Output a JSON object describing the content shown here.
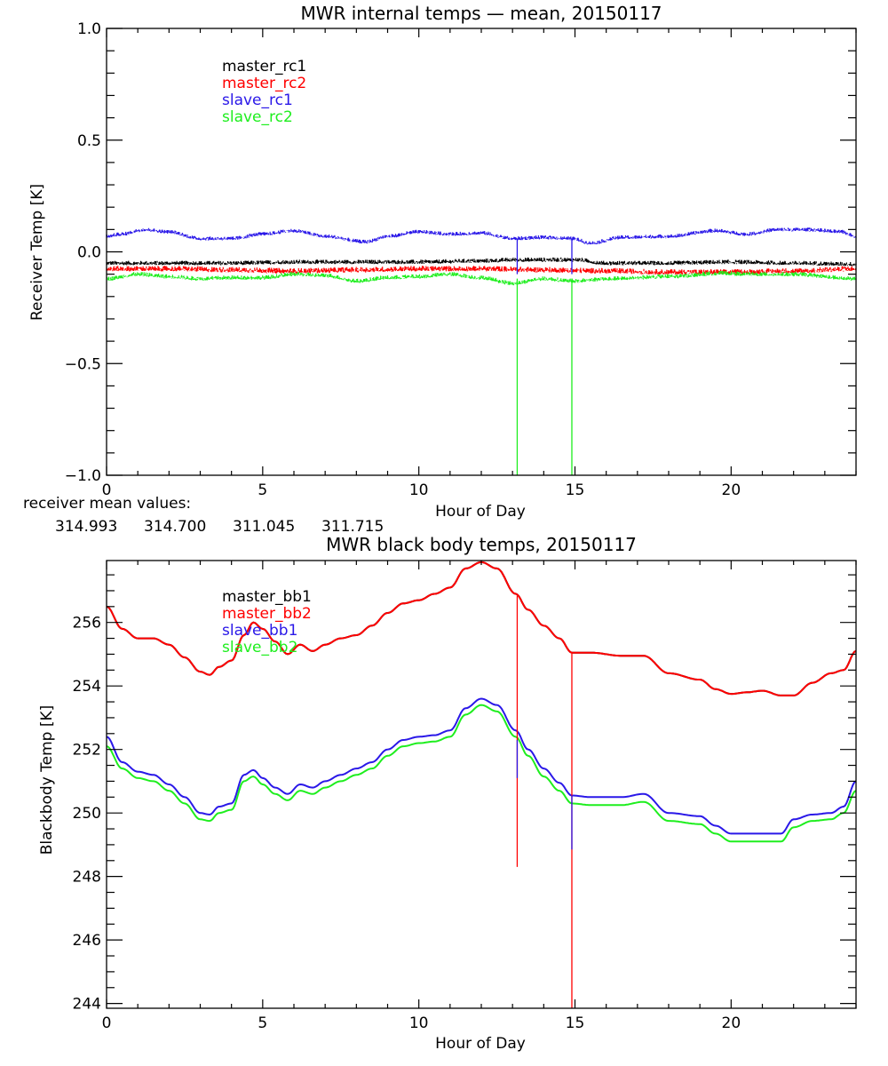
{
  "colors": {
    "black": "#000000",
    "red": "#ff0000",
    "blue": "#2a18e8",
    "green": "#1eee1e",
    "axis": "#000000"
  },
  "receiver_means": {
    "label": "receiver mean values:",
    "values": [
      {
        "text": "314.993",
        "color": "black"
      },
      {
        "text": "314.700",
        "color": "red"
      },
      {
        "text": "311.045",
        "color": "blue"
      },
      {
        "text": "311.715",
        "color": "green"
      }
    ]
  },
  "chart_data": [
    {
      "type": "line",
      "title": "MWR internal temps — mean, 20150117",
      "xlabel": "Hour of Day",
      "ylabel": "Receiver Temp [K]",
      "xlim": [
        0,
        24
      ],
      "ylim": [
        -1.0,
        1.0
      ],
      "xticks": [
        0,
        5,
        10,
        15,
        20
      ],
      "xtick_labels": [
        "0",
        "5",
        "10",
        "15",
        "20"
      ],
      "xminor_step": 1,
      "yticks": [
        -1.0,
        -0.5,
        0.0,
        0.5,
        1.0
      ],
      "ytick_labels": [
        "−1.0",
        "−0.5",
        "0.0",
        "0.5",
        "1.0"
      ],
      "yminor_step": 0.1,
      "grid": false,
      "legend_position": "top-left",
      "noisy": true,
      "series": [
        {
          "name": "master_rc1",
          "color": "black",
          "x": [
            0,
            2,
            4,
            6,
            8,
            10,
            12,
            13.2,
            14,
            15,
            16,
            18,
            20,
            22,
            24
          ],
          "y": [
            -0.05,
            -0.05,
            -0.05,
            -0.045,
            -0.045,
            -0.045,
            -0.04,
            -0.035,
            -0.035,
            -0.035,
            -0.05,
            -0.05,
            -0.045,
            -0.05,
            -0.055
          ],
          "band": 0.02
        },
        {
          "name": "master_rc2",
          "color": "red",
          "x": [
            0,
            2,
            4,
            6,
            8,
            10,
            12,
            14,
            16,
            18,
            20,
            22,
            24
          ],
          "y": [
            -0.075,
            -0.075,
            -0.08,
            -0.085,
            -0.08,
            -0.075,
            -0.075,
            -0.08,
            -0.085,
            -0.09,
            -0.09,
            -0.085,
            -0.075
          ],
          "band": 0.025
        },
        {
          "name": "slave_rc1",
          "color": "blue",
          "x": [
            0,
            0.5,
            1.2,
            2,
            3,
            4,
            5,
            6,
            7,
            8.3,
            9,
            10,
            11,
            12,
            13,
            14,
            14.9,
            15.5,
            16.5,
            18,
            19.5,
            20.5,
            21.5,
            22.5,
            23.5,
            24
          ],
          "y": [
            0.07,
            0.08,
            0.1,
            0.09,
            0.06,
            0.06,
            0.08,
            0.095,
            0.07,
            0.045,
            0.07,
            0.09,
            0.08,
            0.085,
            0.06,
            0.065,
            0.06,
            0.04,
            0.065,
            0.07,
            0.095,
            0.08,
            0.1,
            0.1,
            0.09,
            0.07
          ],
          "band": 0.018
        },
        {
          "name": "slave_rc2",
          "color": "green",
          "x": [
            0,
            1,
            2,
            3,
            4,
            5,
            6,
            7,
            8,
            9,
            10,
            11,
            12,
            13,
            14,
            15,
            16,
            18,
            19.8,
            20.5,
            22,
            24
          ],
          "y": [
            -0.12,
            -0.1,
            -0.11,
            -0.12,
            -0.115,
            -0.115,
            -0.1,
            -0.105,
            -0.13,
            -0.115,
            -0.11,
            -0.1,
            -0.115,
            -0.14,
            -0.12,
            -0.13,
            -0.12,
            -0.11,
            -0.095,
            -0.1,
            -0.1,
            -0.12
          ],
          "band": 0.02
        }
      ],
      "spikes": [
        {
          "x": 13.15,
          "from": -0.12,
          "to": -1.0,
          "color": "green"
        },
        {
          "x": 14.9,
          "from": -0.12,
          "to": -1.0,
          "color": "green"
        },
        {
          "x": 13.15,
          "from": 0.06,
          "to": -0.1,
          "color": "blue"
        },
        {
          "x": 14.9,
          "from": 0.06,
          "to": -0.1,
          "color": "blue"
        }
      ]
    },
    {
      "type": "line",
      "title": "MWR black body temps, 20150117",
      "xlabel": "Hour of Day",
      "ylabel": "Blackbody Temp [K]",
      "xlim": [
        0,
        24
      ],
      "ylim": [
        243.85,
        257.95
      ],
      "xticks": [
        0,
        5,
        10,
        15,
        20
      ],
      "xtick_labels": [
        "0",
        "5",
        "10",
        "15",
        "20"
      ],
      "xminor_step": 1,
      "yticks": [
        244,
        246,
        248,
        250,
        252,
        254,
        256
      ],
      "ytick_labels": [
        "244",
        "246",
        "248",
        "250",
        "252",
        "254",
        "256"
      ],
      "yminor_step": 0.5,
      "grid": false,
      "legend_position": "top-left",
      "noisy": false,
      "series": [
        {
          "name": "master_bb1",
          "color": "black",
          "x": [
            0,
            0.5,
            1,
            1.5,
            2,
            2.5,
            3,
            3.3,
            3.6,
            4,
            4.4,
            4.7,
            5,
            5.4,
            5.8,
            6.2,
            6.6,
            7,
            7.5,
            8,
            8.5,
            9,
            9.5,
            10,
            10.5,
            11,
            11.5,
            12,
            12.5,
            13.1,
            13.5,
            14,
            14.5,
            14.9,
            15.5,
            16.5,
            17.2,
            18,
            19,
            19.5,
            20,
            20.5,
            21,
            21.6,
            22,
            22.6,
            23.2,
            23.6,
            24
          ],
          "y": [
            256.5,
            255.8,
            255.5,
            255.5,
            255.3,
            254.9,
            254.45,
            254.35,
            254.6,
            254.8,
            255.6,
            256.0,
            255.8,
            255.4,
            255.0,
            255.3,
            255.1,
            255.3,
            255.5,
            255.6,
            255.9,
            256.3,
            256.6,
            256.7,
            256.9,
            257.1,
            257.7,
            257.9,
            257.7,
            256.9,
            256.4,
            255.9,
            255.5,
            255.05,
            255.05,
            254.95,
            254.95,
            254.4,
            254.2,
            253.9,
            253.75,
            253.8,
            253.85,
            253.7,
            253.7,
            254.1,
            254.4,
            254.5,
            255.1
          ]
        },
        {
          "name": "master_bb2",
          "color": "red",
          "x": [
            0,
            0.5,
            1,
            1.5,
            2,
            2.5,
            3,
            3.3,
            3.6,
            4,
            4.4,
            4.7,
            5,
            5.4,
            5.8,
            6.2,
            6.6,
            7,
            7.5,
            8,
            8.5,
            9,
            9.5,
            10,
            10.5,
            11,
            11.5,
            12,
            12.5,
            13.1,
            13.5,
            14,
            14.5,
            14.9,
            15.5,
            16.5,
            17.2,
            18,
            19,
            19.5,
            20,
            20.5,
            21,
            21.6,
            22,
            22.6,
            23.2,
            23.6,
            24
          ],
          "y": [
            256.5,
            255.8,
            255.5,
            255.5,
            255.3,
            254.9,
            254.45,
            254.35,
            254.6,
            254.8,
            255.6,
            256.0,
            255.8,
            255.4,
            255.0,
            255.3,
            255.1,
            255.3,
            255.5,
            255.6,
            255.9,
            256.3,
            256.6,
            256.7,
            256.9,
            257.1,
            257.7,
            257.9,
            257.7,
            256.9,
            256.4,
            255.9,
            255.5,
            255.05,
            255.05,
            254.95,
            254.95,
            254.4,
            254.2,
            253.9,
            253.75,
            253.8,
            253.85,
            253.7,
            253.7,
            254.1,
            254.4,
            254.5,
            255.1
          ]
        },
        {
          "name": "slave_bb1",
          "color": "blue",
          "x": [
            0,
            0.5,
            1,
            1.5,
            2,
            2.5,
            3,
            3.3,
            3.6,
            4,
            4.4,
            4.7,
            5,
            5.4,
            5.8,
            6.2,
            6.6,
            7,
            7.5,
            8,
            8.5,
            9,
            9.5,
            10,
            10.5,
            11,
            11.5,
            12,
            12.5,
            13.1,
            13.5,
            14,
            14.5,
            14.9,
            15.5,
            16.5,
            17.2,
            18,
            19,
            19.5,
            20,
            20.5,
            21,
            21.6,
            22,
            22.6,
            23.2,
            23.6,
            24
          ],
          "y": [
            252.4,
            251.6,
            251.3,
            251.2,
            250.9,
            250.5,
            250.0,
            249.95,
            250.2,
            250.3,
            251.2,
            251.35,
            251.1,
            250.8,
            250.6,
            250.9,
            250.8,
            251.0,
            251.2,
            251.4,
            251.6,
            252.0,
            252.3,
            252.4,
            252.45,
            252.6,
            253.3,
            253.6,
            253.4,
            252.6,
            252.0,
            251.4,
            250.95,
            250.55,
            250.5,
            250.5,
            250.6,
            250.0,
            249.9,
            249.6,
            249.35,
            249.35,
            249.35,
            249.35,
            249.8,
            249.95,
            250.0,
            250.2,
            251.0
          ]
        },
        {
          "name": "slave_bb2",
          "color": "green",
          "x": [
            0,
            0.5,
            1,
            1.5,
            2,
            2.5,
            3,
            3.3,
            3.6,
            4,
            4.4,
            4.7,
            5,
            5.4,
            5.8,
            6.2,
            6.6,
            7,
            7.5,
            8,
            8.5,
            9,
            9.5,
            10,
            10.5,
            11,
            11.5,
            12,
            12.5,
            13.1,
            13.5,
            14,
            14.5,
            14.9,
            15.5,
            16.5,
            17.2,
            18,
            19,
            19.5,
            20,
            20.5,
            21,
            21.6,
            22,
            22.6,
            23.2,
            23.6,
            24
          ],
          "y": [
            252.1,
            251.4,
            251.1,
            251.0,
            250.7,
            250.3,
            249.8,
            249.75,
            250.0,
            250.1,
            251.0,
            251.15,
            250.9,
            250.6,
            250.4,
            250.7,
            250.6,
            250.8,
            251.0,
            251.2,
            251.4,
            251.8,
            252.1,
            252.2,
            252.25,
            252.4,
            253.1,
            253.4,
            253.2,
            252.4,
            251.8,
            251.15,
            250.7,
            250.3,
            250.25,
            250.25,
            250.35,
            249.75,
            249.65,
            249.35,
            249.1,
            249.1,
            249.1,
            249.1,
            249.55,
            249.75,
            249.8,
            250.0,
            250.7
          ]
        }
      ],
      "spikes": [
        {
          "x": 13.15,
          "from": 256.85,
          "to": 248.3,
          "color": "red"
        },
        {
          "x": 14.9,
          "from": 255.05,
          "to": 243.85,
          "color": "red"
        },
        {
          "x": 13.15,
          "from": 252.3,
          "to": 251.1,
          "color": "blue"
        },
        {
          "x": 14.9,
          "from": 250.55,
          "to": 248.85,
          "color": "blue"
        }
      ]
    }
  ]
}
